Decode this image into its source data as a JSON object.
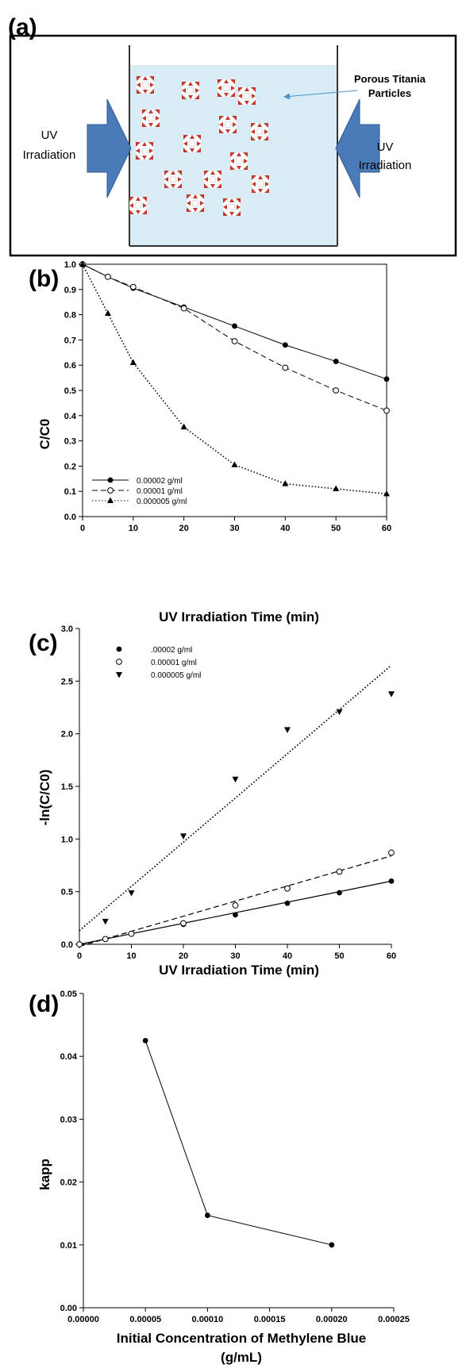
{
  "panel_a": {
    "label": "(a)",
    "left_arrow_label_line1": "UV",
    "left_arrow_label_line2": "Irradiation",
    "right_arrow_label_line1": "UV",
    "right_arrow_label_line2": "Irradiation",
    "particles_label_line1": "Porous Titania",
    "particles_label_line2": "Particles",
    "colors": {
      "liquid": "#d9ecf5",
      "arrow": "#4a7ab8",
      "particle": "#c0392b"
    }
  },
  "chart_data": [
    {
      "panel_label": "(b)",
      "type": "line",
      "xlabel": "UV Irradiation Time (min)",
      "ylabel": "C/C0",
      "xlim": [
        0,
        60
      ],
      "ylim": [
        0,
        1.0
      ],
      "xticks": [
        "0",
        "10",
        "20",
        "30",
        "40",
        "50",
        "60"
      ],
      "yticks": [
        "0.0",
        "0.1",
        "0.2",
        "0.3",
        "0.4",
        "0.5",
        "0.6",
        "0.7",
        "0.8",
        "0.9",
        "1.0"
      ],
      "legend_position": "bottom-left",
      "series": [
        {
          "name": "0.00002 g/ml",
          "marker": "filled-circle",
          "line": "solid",
          "x": [
            0,
            5,
            10,
            20,
            30,
            40,
            50,
            60
          ],
          "y": [
            1.0,
            0.95,
            0.905,
            0.83,
            0.755,
            0.68,
            0.615,
            0.545
          ]
        },
        {
          "name": "0.00001 g/ml",
          "marker": "open-circle",
          "line": "dashed",
          "x": [
            0,
            5,
            10,
            20,
            30,
            40,
            50,
            60
          ],
          "y": [
            1.0,
            0.95,
            0.91,
            0.825,
            0.695,
            0.59,
            0.5,
            0.42
          ]
        },
        {
          "name": "0.000005 g/ml",
          "marker": "filled-triangle-up",
          "line": "dotted",
          "x": [
            0,
            5,
            10,
            20,
            30,
            40,
            50,
            60
          ],
          "y": [
            1.0,
            0.805,
            0.61,
            0.355,
            0.205,
            0.13,
            0.11,
            0.09
          ]
        }
      ]
    },
    {
      "panel_label": "(c)",
      "type": "scatter",
      "xlabel": "UV Irradiation Time (min)",
      "ylabel": "-ln(C/C0)",
      "xlim": [
        0,
        60
      ],
      "ylim": [
        0,
        3.0
      ],
      "xticks": [
        "0",
        "10",
        "20",
        "30",
        "40",
        "50",
        "60"
      ],
      "yticks": [
        "0.0",
        "0.5",
        "1.0",
        "1.5",
        "2.0",
        "2.5",
        "3.0"
      ],
      "legend_position": "top-left",
      "series": [
        {
          "name": ".00002 g/ml",
          "marker": "filled-circle",
          "line": "solid",
          "x": [
            0,
            5,
            10,
            20,
            30,
            40,
            50,
            60
          ],
          "y": [
            0.0,
            0.05,
            0.1,
            0.19,
            0.28,
            0.39,
            0.49,
            0.6
          ],
          "fit": [
            [
              0,
              0.0
            ],
            [
              60,
              0.6
            ]
          ]
        },
        {
          "name": "0.00001 g/ml",
          "marker": "open-circle",
          "line": "dashed",
          "x": [
            0,
            5,
            10,
            20,
            30,
            40,
            50,
            60
          ],
          "y": [
            0.0,
            0.05,
            0.1,
            0.2,
            0.37,
            0.53,
            0.69,
            0.87
          ],
          "fit": [
            [
              0,
              -0.02
            ],
            [
              60,
              0.84
            ]
          ]
        },
        {
          "name": "0.000005 g/ml",
          "marker": "filled-triangle-down",
          "line": "dotted",
          "x": [
            5,
            10,
            20,
            30,
            40,
            50,
            60
          ],
          "y": [
            0.22,
            0.49,
            1.03,
            1.57,
            2.04,
            2.21,
            2.38
          ],
          "fit": [
            [
              0,
              0.13
            ],
            [
              60,
              2.65
            ]
          ]
        }
      ]
    },
    {
      "panel_label": "(d)",
      "type": "line",
      "xlabel_line1": "Initial Concentration of Methylene Blue",
      "xlabel_line2": "(g/mL)",
      "ylabel": "kapp",
      "xlim": [
        0,
        0.00025
      ],
      "ylim": [
        0,
        0.05
      ],
      "xticks": [
        "0.00000",
        "0.00005",
        "0.00010",
        "0.00015",
        "0.00020",
        "0.00025"
      ],
      "yticks": [
        "0.00",
        "0.01",
        "0.02",
        "0.03",
        "0.04",
        "0.05"
      ],
      "series": [
        {
          "marker": "filled-circle",
          "line": "solid",
          "x": [
            5e-05,
            0.0001,
            0.0002
          ],
          "y": [
            0.0425,
            0.0147,
            0.01
          ]
        }
      ]
    }
  ]
}
